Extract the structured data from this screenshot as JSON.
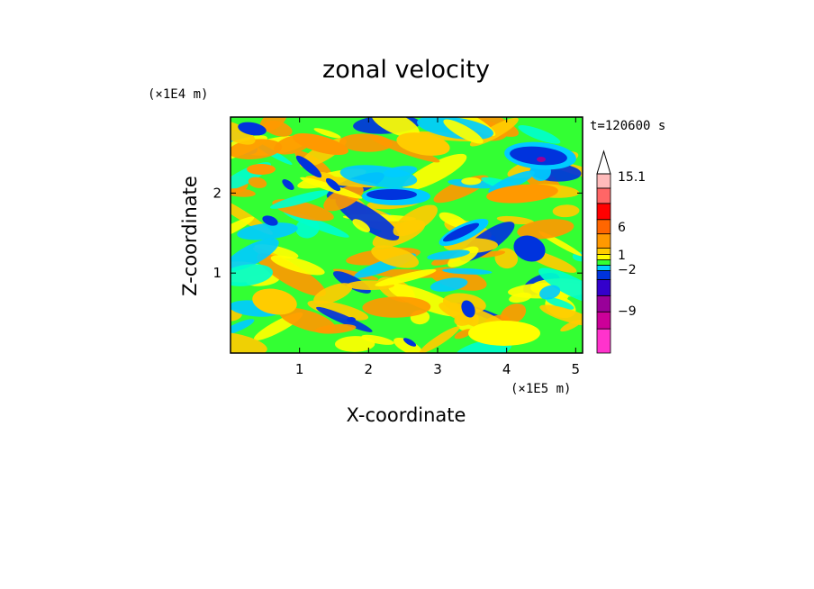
{
  "chart_data": {
    "type": "heatmap",
    "title": "zonal velocity",
    "xlabel": "X-coordinate",
    "ylabel": "Z-coordinate",
    "x_unit": "(×1E5 m)",
    "y_unit": "(×1E4 m)",
    "time_label": "t=120600 s",
    "xlim": [
      0,
      5.1
    ],
    "ylim": [
      0,
      2.95
    ],
    "x_ticks": [
      "1",
      "2",
      "3",
      "4",
      "5"
    ],
    "y_ticks": [
      "1",
      "2"
    ],
    "colorbar": {
      "labels": [
        "15.1",
        "6",
        "1",
        "−2",
        "−9"
      ],
      "colors": [
        "#ff33cc",
        "#cc0099",
        "#990099",
        "#3300cc",
        "#0033dd",
        "#00ccff",
        "#33ff33",
        "#ffff00",
        "#ffcc00",
        "#ff9900",
        "#ff6600",
        "#ff0000",
        "#ff6666",
        "#ffbbbb"
      ],
      "top_arrow": true
    }
  }
}
